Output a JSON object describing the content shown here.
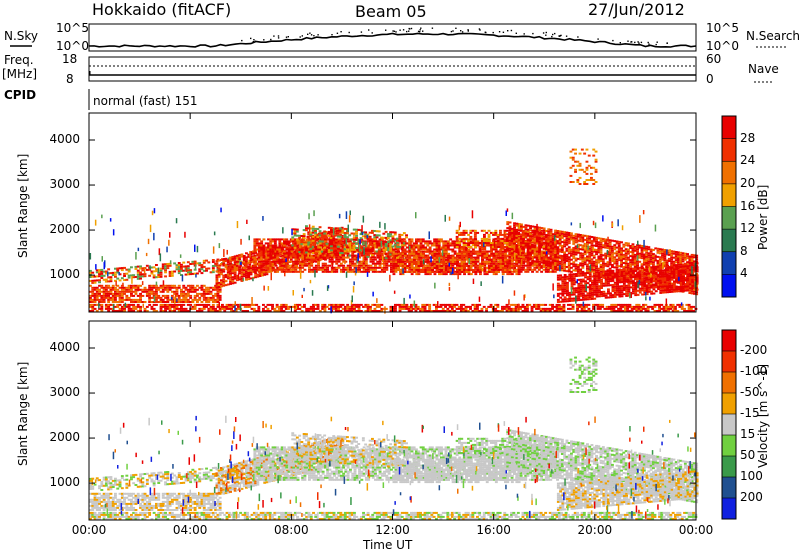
{
  "header": {
    "radar": "Hokkaido (fitACF)",
    "beam": "Beam 05",
    "date": "27/Jun/2012"
  },
  "status_panels": {
    "nsky_label": "N.Sky",
    "nsearch_label": "N.Search",
    "nsky_ticks": [
      "10^5",
      "10^0"
    ],
    "nsearch_ticks": [
      "10^5",
      "10^0"
    ],
    "freq_label": "Freq.",
    "freq_unit": "[MHz]",
    "freq_ticks": [
      "18",
      "8"
    ],
    "nave_label": "Nave",
    "nave_ticks": [
      "60",
      "0"
    ],
    "cpid_label": "CPID",
    "cpid_value": "normal (fast) 151"
  },
  "chart_data": [
    {
      "type": "heatmap",
      "title": "",
      "ylabel": "Slant Range [km]",
      "ylim": [
        180,
        4600
      ],
      "yticks": [
        "1000",
        "2000",
        "3000",
        "4000"
      ],
      "xlabel": "Time UT",
      "xticks": [
        "00:00",
        "04:00",
        "08:00",
        "12:00",
        "16:00",
        "20:00",
        "00:00"
      ],
      "colorbar": {
        "label": "Power [dB]",
        "ticks": [
          "4",
          "8",
          "12",
          "16",
          "20",
          "24",
          "28"
        ],
        "colors": [
          "#0010f0",
          "#1040b0",
          "#2a7a50",
          "#5aa050",
          "#f0a000",
          "#f07000",
          "#f03000",
          "#e80000"
        ]
      }
    },
    {
      "type": "heatmap",
      "title": "",
      "ylabel": "Slant Range [km]",
      "ylim": [
        180,
        4600
      ],
      "yticks": [
        "1000",
        "2000",
        "3000",
        "4000"
      ],
      "xlabel": "Time UT",
      "xticks": [
        "00:00",
        "04:00",
        "08:00",
        "12:00",
        "16:00",
        "20:00",
        "00:00"
      ],
      "colorbar": {
        "label": "Velocity [m s^-1]",
        "ticks": [
          "200",
          "100",
          "50",
          "15",
          "-15",
          "-50",
          "-100",
          "-200"
        ],
        "colors": [
          "#1020e0",
          "#205090",
          "#3a9a4a",
          "#70d040",
          "#c8c8c8",
          "#f0a000",
          "#f07000",
          "#f03000",
          "#e80000"
        ]
      }
    }
  ]
}
